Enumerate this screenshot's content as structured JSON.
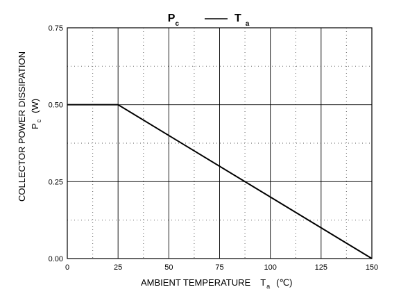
{
  "chart_data": {
    "type": "line",
    "title": {
      "left_main": "P",
      "left_sub": "c",
      "right_main": "T",
      "right_sub": "a"
    },
    "xlabel": {
      "text": "AMBIENT TEMPERATURE",
      "symbol": "T",
      "symbol_sub": "a",
      "unit": "(℃)"
    },
    "ylabel": {
      "text": "COLLECTOR POWER DISSIPATION",
      "symbol": "P",
      "symbol_sub": "c",
      "unit": "(W)"
    },
    "xlim": [
      0,
      150
    ],
    "ylim": [
      0,
      0.75
    ],
    "x_ticks": [
      0,
      25,
      50,
      75,
      100,
      125,
      150
    ],
    "x_tick_labels": [
      "0",
      "25",
      "50",
      "75",
      "100",
      "125",
      "150"
    ],
    "x_minor_ticks": [
      12.5,
      37.5,
      62.5,
      87.5,
      112.5,
      137.5
    ],
    "y_ticks": [
      0,
      0.25,
      0.5,
      0.75
    ],
    "y_tick_labels": [
      "0.00",
      "0.25",
      "0.50",
      "0.75"
    ],
    "y_minor_ticks": [
      0.125,
      0.375,
      0.625
    ],
    "grid": true,
    "series": [
      {
        "x": [
          0,
          25,
          150
        ],
        "y": [
          0.5,
          0.5,
          0
        ]
      }
    ]
  }
}
